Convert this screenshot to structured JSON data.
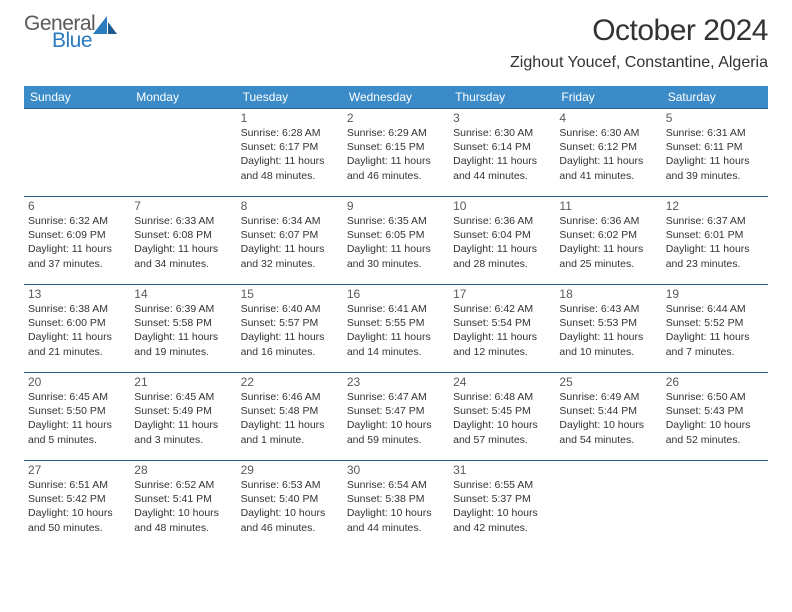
{
  "logo": {
    "general": "General",
    "blue": "Blue"
  },
  "title": "October 2024",
  "location": "Zighout Youcef, Constantine, Algeria",
  "theme": {
    "header_bg": "#3b8bc9",
    "header_fg": "#ffffff",
    "rule_color": "#2b5f8c",
    "logo_gray": "#5a5a5a",
    "logo_blue": "#2b7bbf",
    "text_color": "#333333",
    "daynum_color": "#5a5a5a",
    "body_font_size": 10.5,
    "daynum_font_size": 12,
    "title_font_size": 30,
    "location_font_size": 16
  },
  "day_headers": [
    "Sunday",
    "Monday",
    "Tuesday",
    "Wednesday",
    "Thursday",
    "Friday",
    "Saturday"
  ],
  "weeks": [
    [
      null,
      null,
      {
        "n": "1",
        "sr": "6:28 AM",
        "ss": "6:17 PM",
        "dl": "11 hours and 48 minutes."
      },
      {
        "n": "2",
        "sr": "6:29 AM",
        "ss": "6:15 PM",
        "dl": "11 hours and 46 minutes."
      },
      {
        "n": "3",
        "sr": "6:30 AM",
        "ss": "6:14 PM",
        "dl": "11 hours and 44 minutes."
      },
      {
        "n": "4",
        "sr": "6:30 AM",
        "ss": "6:12 PM",
        "dl": "11 hours and 41 minutes."
      },
      {
        "n": "5",
        "sr": "6:31 AM",
        "ss": "6:11 PM",
        "dl": "11 hours and 39 minutes."
      }
    ],
    [
      {
        "n": "6",
        "sr": "6:32 AM",
        "ss": "6:09 PM",
        "dl": "11 hours and 37 minutes."
      },
      {
        "n": "7",
        "sr": "6:33 AM",
        "ss": "6:08 PM",
        "dl": "11 hours and 34 minutes."
      },
      {
        "n": "8",
        "sr": "6:34 AM",
        "ss": "6:07 PM",
        "dl": "11 hours and 32 minutes."
      },
      {
        "n": "9",
        "sr": "6:35 AM",
        "ss": "6:05 PM",
        "dl": "11 hours and 30 minutes."
      },
      {
        "n": "10",
        "sr": "6:36 AM",
        "ss": "6:04 PM",
        "dl": "11 hours and 28 minutes."
      },
      {
        "n": "11",
        "sr": "6:36 AM",
        "ss": "6:02 PM",
        "dl": "11 hours and 25 minutes."
      },
      {
        "n": "12",
        "sr": "6:37 AM",
        "ss": "6:01 PM",
        "dl": "11 hours and 23 minutes."
      }
    ],
    [
      {
        "n": "13",
        "sr": "6:38 AM",
        "ss": "6:00 PM",
        "dl": "11 hours and 21 minutes."
      },
      {
        "n": "14",
        "sr": "6:39 AM",
        "ss": "5:58 PM",
        "dl": "11 hours and 19 minutes."
      },
      {
        "n": "15",
        "sr": "6:40 AM",
        "ss": "5:57 PM",
        "dl": "11 hours and 16 minutes."
      },
      {
        "n": "16",
        "sr": "6:41 AM",
        "ss": "5:55 PM",
        "dl": "11 hours and 14 minutes."
      },
      {
        "n": "17",
        "sr": "6:42 AM",
        "ss": "5:54 PM",
        "dl": "11 hours and 12 minutes."
      },
      {
        "n": "18",
        "sr": "6:43 AM",
        "ss": "5:53 PM",
        "dl": "11 hours and 10 minutes."
      },
      {
        "n": "19",
        "sr": "6:44 AM",
        "ss": "5:52 PM",
        "dl": "11 hours and 7 minutes."
      }
    ],
    [
      {
        "n": "20",
        "sr": "6:45 AM",
        "ss": "5:50 PM",
        "dl": "11 hours and 5 minutes."
      },
      {
        "n": "21",
        "sr": "6:45 AM",
        "ss": "5:49 PM",
        "dl": "11 hours and 3 minutes."
      },
      {
        "n": "22",
        "sr": "6:46 AM",
        "ss": "5:48 PM",
        "dl": "11 hours and 1 minute."
      },
      {
        "n": "23",
        "sr": "6:47 AM",
        "ss": "5:47 PM",
        "dl": "10 hours and 59 minutes."
      },
      {
        "n": "24",
        "sr": "6:48 AM",
        "ss": "5:45 PM",
        "dl": "10 hours and 57 minutes."
      },
      {
        "n": "25",
        "sr": "6:49 AM",
        "ss": "5:44 PM",
        "dl": "10 hours and 54 minutes."
      },
      {
        "n": "26",
        "sr": "6:50 AM",
        "ss": "5:43 PM",
        "dl": "10 hours and 52 minutes."
      }
    ],
    [
      {
        "n": "27",
        "sr": "6:51 AM",
        "ss": "5:42 PM",
        "dl": "10 hours and 50 minutes."
      },
      {
        "n": "28",
        "sr": "6:52 AM",
        "ss": "5:41 PM",
        "dl": "10 hours and 48 minutes."
      },
      {
        "n": "29",
        "sr": "6:53 AM",
        "ss": "5:40 PM",
        "dl": "10 hours and 46 minutes."
      },
      {
        "n": "30",
        "sr": "6:54 AM",
        "ss": "5:38 PM",
        "dl": "10 hours and 44 minutes."
      },
      {
        "n": "31",
        "sr": "6:55 AM",
        "ss": "5:37 PM",
        "dl": "10 hours and 42 minutes."
      },
      null,
      null
    ]
  ],
  "labels": {
    "sunrise": "Sunrise:",
    "sunset": "Sunset:",
    "daylight": "Daylight:"
  }
}
